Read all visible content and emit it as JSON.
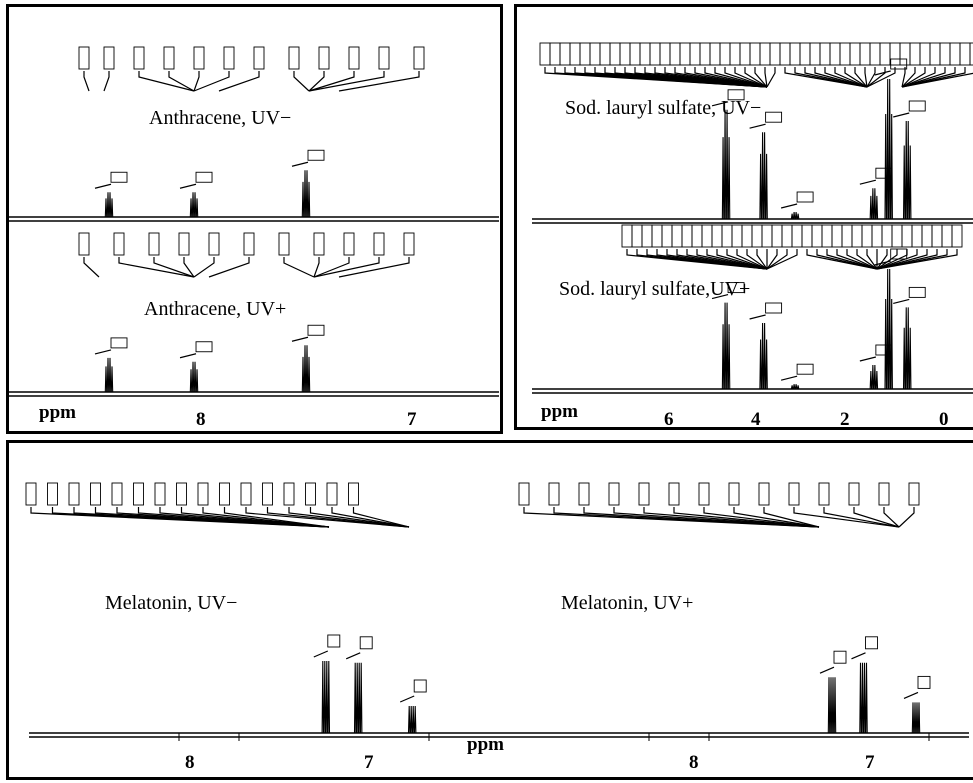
{
  "chart_data": [
    {
      "type": "line",
      "title": "",
      "xlabel": "ppm",
      "x_ticks": [
        "8",
        "7"
      ],
      "xlim": [
        8.6,
        6.8
      ],
      "spectra": [
        {
          "name": "Anthracene, UV−",
          "peaks_ppm": [
            8.42,
            8.01,
            7.47
          ],
          "relative_height": [
            0.45,
            0.45,
            0.85
          ]
        },
        {
          "name": "Anthracene, UV+",
          "peaks_ppm": [
            8.42,
            8.01,
            7.47
          ],
          "relative_height": [
            0.62,
            0.55,
            0.85
          ]
        }
      ]
    },
    {
      "type": "line",
      "title": "",
      "xlabel": "ppm",
      "x_ticks": [
        "6",
        "4",
        "2",
        "0"
      ],
      "xlim": [
        7.5,
        -0.5
      ],
      "spectra": [
        {
          "name": "Sod. lauryl sulfate, UV−",
          "peaks_ppm": [
            4.79,
            3.98,
            3.3,
            1.6,
            1.28,
            0.88
          ],
          "relative_height": [
            0.78,
            0.62,
            0.05,
            0.22,
            1.0,
            0.7
          ]
        },
        {
          "name": "Sod. lauryl sulfate,UV+",
          "peaks_ppm": [
            4.79,
            3.98,
            3.3,
            1.6,
            1.28,
            0.88
          ],
          "relative_height": [
            0.72,
            0.55,
            0.04,
            0.2,
            1.0,
            0.68
          ]
        }
      ]
    },
    {
      "type": "line",
      "title": "",
      "xlabel": "ppm",
      "x_ticks": [
        "8",
        "7",
        "8",
        "7"
      ],
      "spectra": [
        {
          "name": "Melatonin, UV−",
          "xlim": [
            8.6,
            6.4
          ],
          "peaks_ppm": [
            7.24,
            7.06,
            6.76
          ],
          "relative_height": [
            0.8,
            0.78,
            0.3
          ]
        },
        {
          "name": "Melatonin, UV+",
          "xlim": [
            8.6,
            6.4
          ],
          "peaks_ppm": [
            7.24,
            7.06,
            6.76
          ],
          "relative_height": [
            0.62,
            0.78,
            0.34
          ]
        }
      ]
    }
  ],
  "panels": {
    "anthracene": {
      "label_top": "Anthracene, UV−",
      "label_bottom": "Anthracene, UV+",
      "axis": "ppm",
      "ticks": [
        "8",
        "7"
      ]
    },
    "sls": {
      "label_top": "Sod. lauryl sulfate, UV−",
      "label_bottom": "Sod. lauryl sulfate,UV+",
      "axis": "ppm",
      "ticks": [
        "6",
        "4",
        "2",
        "0"
      ]
    },
    "melatonin": {
      "label_left": "Melatonin, UV−",
      "label_right": "Melatonin, UV+",
      "axis": "ppm",
      "ticks": [
        "8",
        "7",
        "8",
        "7"
      ]
    }
  }
}
